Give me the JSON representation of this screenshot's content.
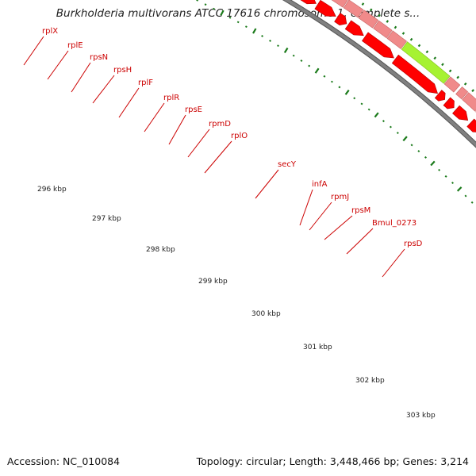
{
  "title": "Burkholderia multivorans ATCC 17616 chromosome 1, complete s...",
  "footer": {
    "accession": "Accession: NC_010084",
    "summary": "Topology: circular; Length: 3,448,466 bp; Genes: 3,214"
  },
  "colors": {
    "outer_track": "#f08a8a",
    "outer_track_stroke": "#c86464",
    "gene_red": "#ff0000",
    "gene_red_stroke": "#b00000",
    "highlight_green": "#a6f232",
    "highlight_orange": "#ff9900",
    "backbone": "#808080",
    "ticks": "#1a7a1a",
    "label": "#cc0000"
  },
  "gene_labels": [
    "rplX",
    "rplE",
    "rpsN",
    "rpsH",
    "rplF",
    "rplR",
    "rpsE",
    "rpmD",
    "rplO",
    "secY",
    "infA",
    "rpmJ",
    "rpsM",
    "Bmul_0273",
    "rpsD"
  ],
  "kbp_labels": [
    "296 kbp",
    "297 kbp",
    "298 kbp",
    "299 kbp",
    "300 kbp",
    "301 kbp",
    "302 kbp",
    "303 kbp"
  ]
}
